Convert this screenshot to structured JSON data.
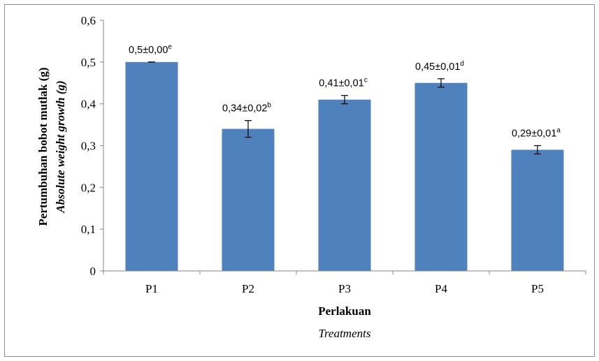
{
  "chart_data": {
    "type": "bar",
    "categories": [
      "P1",
      "P2",
      "P3",
      "P4",
      "P5"
    ],
    "values": [
      0.5,
      0.34,
      0.41,
      0.45,
      0.29
    ],
    "errors": [
      0.0,
      0.02,
      0.01,
      0.01,
      0.01
    ],
    "data_labels": [
      {
        "text": "0,5±0,00",
        "sup": "e"
      },
      {
        "text": "0,34±0,02",
        "sup": "b"
      },
      {
        "text": "0,41±0,01",
        "sup": "c"
      },
      {
        "text": "0,45±0,01",
        "sup": "d"
      },
      {
        "text": "0,29±0,01",
        "sup": "a"
      }
    ],
    "yticks": [
      "0",
      "0,1",
      "0,2",
      "0,3",
      "0,4",
      "0,5",
      "0,6"
    ],
    "ylim": [
      0,
      0.6
    ],
    "xlabel": "Perlakuan",
    "xlabel_secondary": "Treatments",
    "ylabel": "Pertumbuhan  bobot  mutlak  (g)",
    "ylabel_secondary": "Absolute weight growth (g)",
    "bar_color": "#4f81bd",
    "grid": false,
    "legend": "none"
  }
}
